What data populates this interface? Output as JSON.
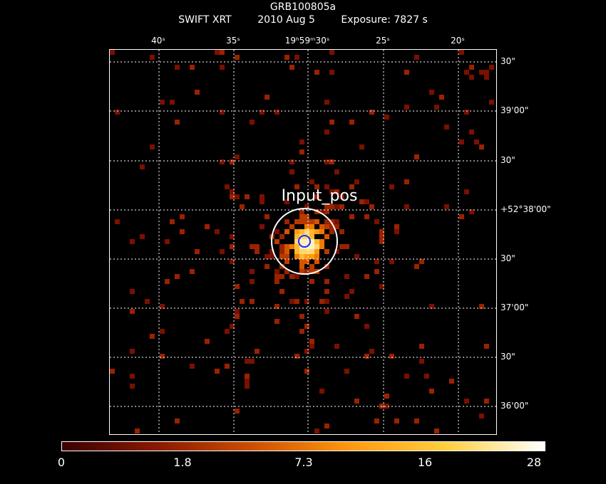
{
  "title": {
    "object": "GRB100805a",
    "instrument": "SWIFT XRT",
    "date": "2010 Aug  5",
    "exposure": "Exposure: 7827 s"
  },
  "region": {
    "label": "Input_pos",
    "outer_color": "#ffffff",
    "inner_color": "#1a2bff"
  },
  "ra_ticks": [
    "40ˢ",
    "35ˢ",
    "19ʰ59ᵐ30ˢ",
    "25ˢ",
    "20ˢ"
  ],
  "dec_ticks": [
    "30\"",
    "39'00\"",
    "30\"",
    "+52°38'00\"",
    "30\"",
    "37'00\"",
    "30\"",
    "36'00\""
  ],
  "colorbar": {
    "labels": [
      "0",
      "1.8",
      "7.3",
      "16",
      "28"
    ],
    "colors": [
      "#3a0000",
      "#8a1a00",
      "#d05000",
      "#ff9a10",
      "#ffd040",
      "#ffffff"
    ]
  },
  "grid": {
    "color": "#ffffff",
    "style": "dotted"
  }
}
